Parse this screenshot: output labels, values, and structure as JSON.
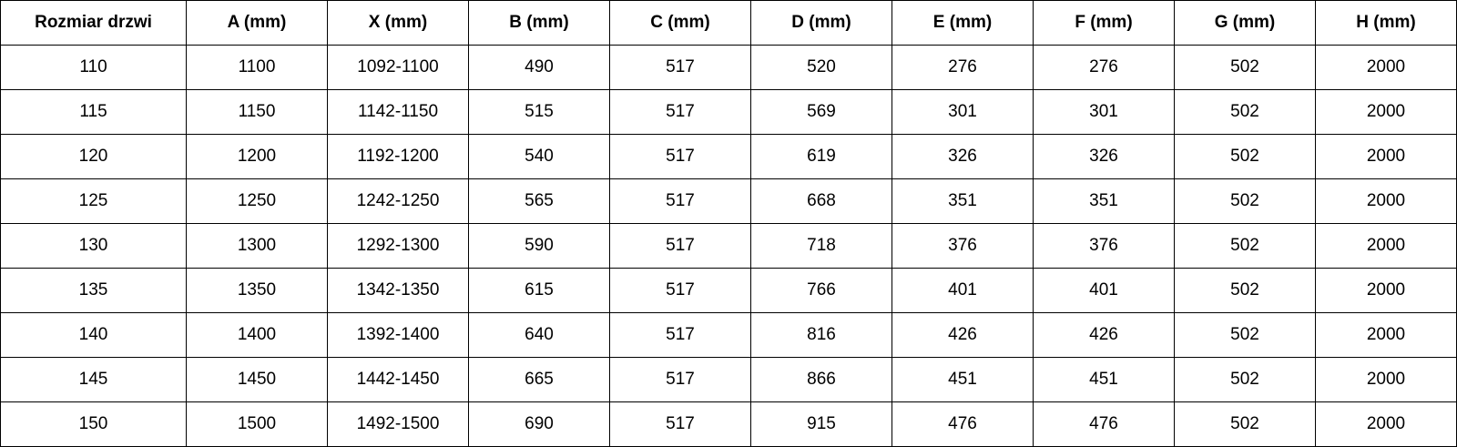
{
  "table": {
    "headers": [
      "Rozmiar drzwi",
      "A (mm)",
      "X (mm)",
      "B (mm)",
      "C (mm)",
      "D (mm)",
      "E (mm)",
      "F (mm)",
      "G (mm)",
      "H (mm)"
    ],
    "rows": [
      [
        "110",
        "1100",
        "1092-1100",
        "490",
        "517",
        "520",
        "276",
        "276",
        "502",
        "2000"
      ],
      [
        "115",
        "1150",
        "1142-1150",
        "515",
        "517",
        "569",
        "301",
        "301",
        "502",
        "2000"
      ],
      [
        "120",
        "1200",
        "1192-1200",
        "540",
        "517",
        "619",
        "326",
        "326",
        "502",
        "2000"
      ],
      [
        "125",
        "1250",
        "1242-1250",
        "565",
        "517",
        "668",
        "351",
        "351",
        "502",
        "2000"
      ],
      [
        "130",
        "1300",
        "1292-1300",
        "590",
        "517",
        "718",
        "376",
        "376",
        "502",
        "2000"
      ],
      [
        "135",
        "1350",
        "1342-1350",
        "615",
        "517",
        "766",
        "401",
        "401",
        "502",
        "2000"
      ],
      [
        "140",
        "1400",
        "1392-1400",
        "640",
        "517",
        "816",
        "426",
        "426",
        "502",
        "2000"
      ],
      [
        "145",
        "1450",
        "1442-1450",
        "665",
        "517",
        "866",
        "451",
        "451",
        "502",
        "2000"
      ],
      [
        "150",
        "1500",
        "1492-1500",
        "690",
        "517",
        "915",
        "476",
        "476",
        "502",
        "2000"
      ]
    ]
  }
}
